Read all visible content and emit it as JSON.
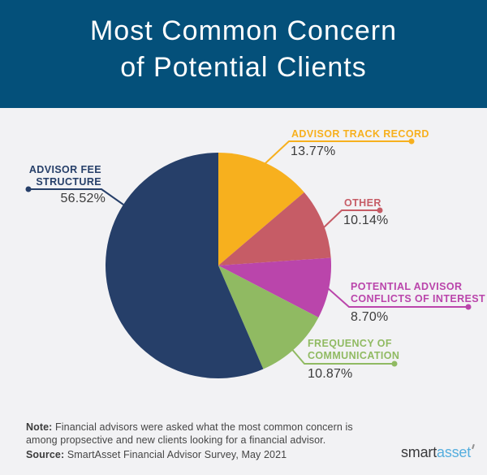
{
  "page": {
    "bg_color": "#f2f2f4"
  },
  "header": {
    "title_line1": "Most Common Concern",
    "title_line2": "of Potential Clients",
    "bg_color": "#04507a",
    "text_color": "#ffffff"
  },
  "chart_data": {
    "type": "pie",
    "title": "Most Common Concern of Potential Clients",
    "start_angle_deg": 0,
    "direction": "clockwise",
    "value_text_color": "#3b3b3b",
    "slices": [
      {
        "id": "track_record",
        "label": "ADVISOR TRACK RECORD",
        "value": 13.77,
        "display": "13.77%",
        "color": "#f7b01e"
      },
      {
        "id": "other",
        "label": "OTHER",
        "value": 10.14,
        "display": "10.14%",
        "color": "#c65c66"
      },
      {
        "id": "conflicts",
        "label": "POTENTIAL ADVISOR CONFLICTS OF INTEREST",
        "label_line1": "POTENTIAL ADVISOR",
        "label_line2": "CONFLICTS OF INTEREST",
        "value": 8.7,
        "display": "8.70%",
        "color": "#ba45ab"
      },
      {
        "id": "frequency",
        "label": "FREQUENCY OF COMMUNICATION",
        "label_line1": "FREQUENCY OF",
        "label_line2": "COMMUNICATION",
        "value": 10.87,
        "display": "10.87%",
        "color": "#90ba62"
      },
      {
        "id": "fee_structure",
        "label": "ADVISOR FEE STRUCTURE",
        "label_line1": "ADVISOR FEE",
        "label_line2": "STRUCTURE",
        "value": 56.52,
        "display": "56.52%",
        "color": "#263f69"
      }
    ]
  },
  "footnote": {
    "note_label": "Note:",
    "note_line1_rest": " Financial advisors were asked what the most common concern is",
    "note_line2": "among propsective and new clients looking for a financial advisor.",
    "source_label": "Source:",
    "source_text": " SmartAsset Financial Advisor Survey, May 2021"
  },
  "logo": {
    "part1": "smart",
    "part2": "asset",
    "part1_color": "#3a3a3c",
    "part2_color": "#55aede"
  }
}
